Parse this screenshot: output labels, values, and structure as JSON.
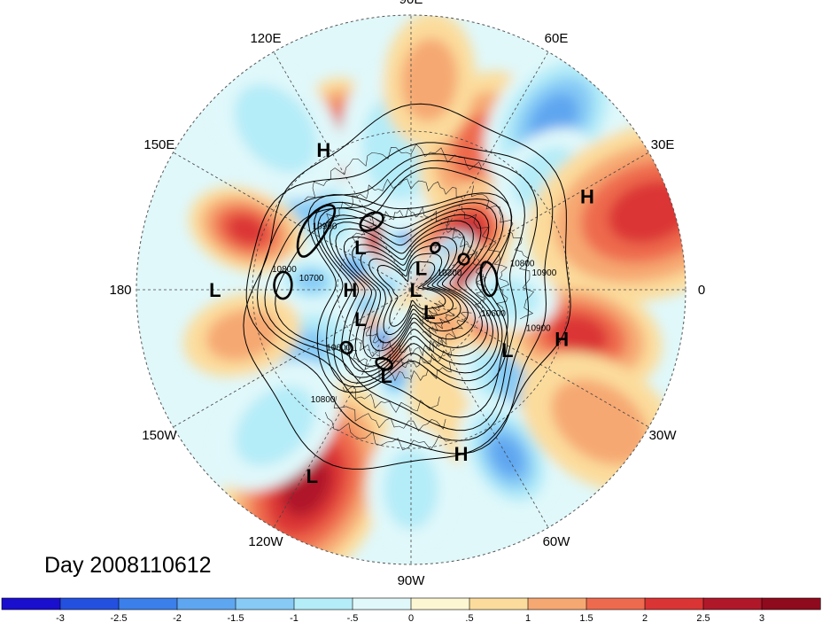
{
  "title": "Day 2008110612",
  "longitude_labels": [
    {
      "text": "90E",
      "lon": 90
    },
    {
      "text": "60E",
      "lon": 60
    },
    {
      "text": "30E",
      "lon": 30
    },
    {
      "text": "0",
      "lon": 0
    },
    {
      "text": "30W",
      "lon": -30
    },
    {
      "text": "60W",
      "lon": -60
    },
    {
      "text": "90W",
      "lon": -90
    },
    {
      "text": "120W",
      "lon": -120
    },
    {
      "text": "150W",
      "lon": -150
    },
    {
      "text": "180",
      "lon": 180
    },
    {
      "text": "150E",
      "lon": 150
    },
    {
      "text": "120E",
      "lon": 120
    }
  ],
  "pressure_centers": [
    {
      "label": "H",
      "lon": 122,
      "lat": 28
    },
    {
      "label": "H",
      "lon": 28,
      "lat": 18
    },
    {
      "label": "L",
      "lon": 180,
      "lat": 19
    },
    {
      "label": "L",
      "lon": 140,
      "lat": 63
    },
    {
      "label": "L",
      "lon": 65,
      "lat": 80
    },
    {
      "label": "H",
      "lon": 180,
      "lat": 65
    },
    {
      "label": "L",
      "lon": 0,
      "lat": 88
    },
    {
      "label": "L",
      "lon": -150,
      "lat": 66
    },
    {
      "label": "L",
      "lon": -50,
      "lat": 78
    },
    {
      "label": "H",
      "lon": -18,
      "lat": 30
    },
    {
      "label": "L",
      "lon": -32,
      "lat": 45
    },
    {
      "label": "L",
      "lon": -106,
      "lat": 54
    },
    {
      "label": "H",
      "lon": -73,
      "lat": 26
    },
    {
      "label": "L",
      "lon": -118,
      "lat": 15
    }
  ],
  "contour_labels": [
    {
      "text": "10900",
      "lon": 145,
      "lat": 48
    },
    {
      "text": "10800",
      "lon": 172,
      "lat": 40
    },
    {
      "text": "10700",
      "lon": 175,
      "lat": 50
    },
    {
      "text": "10600",
      "lon": -140,
      "lat": 52
    },
    {
      "text": "10800",
      "lon": -128,
      "lat": 35
    },
    {
      "text": "10200",
      "lon": 20,
      "lat": 73
    },
    {
      "text": "10800",
      "lon": 12,
      "lat": 45
    },
    {
      "text": "10900",
      "lon": 6,
      "lat": 38
    },
    {
      "text": "10600",
      "lon": -18,
      "lat": 55
    },
    {
      "text": "10900",
      "lon": -18,
      "lat": 38
    }
  ],
  "colorbar": {
    "ticks": [
      "-3",
      "-2.5",
      "-2",
      "-1.5",
      "-1",
      "-.5",
      "0",
      ".5",
      "1",
      "1.5",
      "2",
      "2.5",
      "3"
    ],
    "colors": [
      "#1a0fcc",
      "#2450e0",
      "#3a7fea",
      "#5ea6f0",
      "#86caf5",
      "#b4ecf8",
      "#e0f8fa",
      "#fdf6d2",
      "#fbdc9c",
      "#f6a872",
      "#ee6a4e",
      "#db3434",
      "#b0182a",
      "#8e0a1c"
    ]
  },
  "field_blobs": [
    {
      "lon": 112,
      "lat": 30,
      "r": 30,
      "v": 2.6
    },
    {
      "lon": 115,
      "lat": 68,
      "r": 40,
      "v": 2.9
    },
    {
      "lon": 84,
      "lat": 67,
      "r": 30,
      "v": -2.7
    },
    {
      "lon": 95,
      "lat": 35,
      "r": 40,
      "v": -1.2
    },
    {
      "lon": 65,
      "lat": 30,
      "r": 35,
      "v": 1.6
    },
    {
      "lon": 50,
      "lat": 12,
      "r": 30,
      "v": -1.8
    },
    {
      "lon": 45,
      "lat": 60,
      "r": 36,
      "v": 2.4
    },
    {
      "lon": 40,
      "lat": 25,
      "r": 25,
      "v": -1.2
    },
    {
      "lon": 18,
      "lat": 5,
      "r": 40,
      "v": 2.1
    },
    {
      "lon": 40,
      "lat": 68,
      "r": 16,
      "v": -2.0
    },
    {
      "lon": 10,
      "lat": 65,
      "r": 26,
      "v": 2.6
    },
    {
      "lon": 30,
      "lat": 80,
      "r": 15,
      "v": -1.6
    },
    {
      "lon": 75,
      "lat": 84,
      "r": 12,
      "v": 2.4
    },
    {
      "lon": 100,
      "lat": 80,
      "r": 12,
      "v": -1.0
    },
    {
      "lon": 160,
      "lat": 64,
      "r": 20,
      "v": -1.8
    },
    {
      "lon": 140,
      "lat": 40,
      "r": 30,
      "v": -1.5
    },
    {
      "lon": 160,
      "lat": 25,
      "r": 25,
      "v": 2.0
    },
    {
      "lon": 175,
      "lat": 50,
      "r": 20,
      "v": -1.5
    },
    {
      "lon": 178,
      "lat": 74,
      "r": 12,
      "v": 2.3
    },
    {
      "lon": 168,
      "lat": 80,
      "r": 12,
      "v": -1.3
    },
    {
      "lon": -160,
      "lat": 70,
      "r": 14,
      "v": -1.6
    },
    {
      "lon": -135,
      "lat": 64,
      "r": 14,
      "v": 2.3
    },
    {
      "lon": -120,
      "lat": 66,
      "r": 12,
      "v": -2.4
    },
    {
      "lon": -100,
      "lat": 55,
      "r": 16,
      "v": -2.0
    },
    {
      "lon": -104,
      "lat": 62,
      "r": 10,
      "v": 2.6
    },
    {
      "lon": -150,
      "lat": 40,
      "r": 35,
      "v": -1.3
    },
    {
      "lon": -165,
      "lat": 25,
      "r": 25,
      "v": 1.2
    },
    {
      "lon": -118,
      "lat": 12,
      "r": 40,
      "v": 3.0
    },
    {
      "lon": -135,
      "lat": 20,
      "r": 30,
      "v": -1.2
    },
    {
      "lon": -70,
      "lat": 42,
      "r": 30,
      "v": 0.7
    },
    {
      "lon": -40,
      "lat": 35,
      "r": 35,
      "v": -1.5
    },
    {
      "lon": -60,
      "lat": 20,
      "r": 25,
      "v": -1.8
    },
    {
      "lon": -15,
      "lat": 25,
      "r": 35,
      "v": 2.0
    },
    {
      "lon": -25,
      "lat": 60,
      "r": 22,
      "v": 1.5
    },
    {
      "lon": -45,
      "lat": 70,
      "r": 18,
      "v": 1.2
    },
    {
      "lon": -35,
      "lat": 10,
      "r": 30,
      "v": 1.2
    },
    {
      "lon": -90,
      "lat": 18,
      "r": 25,
      "v": -0.9
    },
    {
      "lon": 130,
      "lat": 15,
      "r": 30,
      "v": -1.0
    },
    {
      "lon": 85,
      "lat": 15,
      "r": 25,
      "v": 1.0
    },
    {
      "lon": -5,
      "lat": 50,
      "r": 25,
      "v": -0.9
    }
  ],
  "contours": [
    {
      "lat": 80,
      "wave": 4,
      "amp": 5,
      "phase": 0.5
    },
    {
      "lat": 77,
      "wave": 4,
      "amp": 6,
      "phase": 0.6
    },
    {
      "lat": 74,
      "wave": 4,
      "amp": 7,
      "phase": 0.7
    },
    {
      "lat": 71,
      "wave": 4,
      "amp": 8,
      "phase": 0.8
    },
    {
      "lat": 68,
      "wave": 4,
      "amp": 9,
      "phase": 0.9
    },
    {
      "lat": 65,
      "wave": 4,
      "amp": 10,
      "phase": 1.0
    },
    {
      "lat": 62,
      "wave": 4,
      "amp": 10,
      "phase": 1.1
    },
    {
      "lat": 59,
      "wave": 4,
      "amp": 10,
      "phase": 1.2
    },
    {
      "lat": 56,
      "wave": 4,
      "amp": 10,
      "phase": 1.3
    },
    {
      "lat": 53,
      "wave": 4,
      "amp": 9,
      "phase": 1.4
    },
    {
      "lat": 50,
      "wave": 4,
      "amp": 9,
      "phase": 1.5
    },
    {
      "lat": 46,
      "wave": 3,
      "amp": 8,
      "phase": 1.6
    },
    {
      "lat": 42,
      "wave": 3,
      "amp": 8,
      "phase": 1.8
    },
    {
      "lat": 38,
      "wave": 3,
      "amp": 7,
      "phase": 2.0
    },
    {
      "lat": 33,
      "wave": 3,
      "amp": 6,
      "phase": 2.2
    },
    {
      "lat": 27,
      "wave": 2,
      "amp": 5,
      "phase": 2.5
    }
  ]
}
